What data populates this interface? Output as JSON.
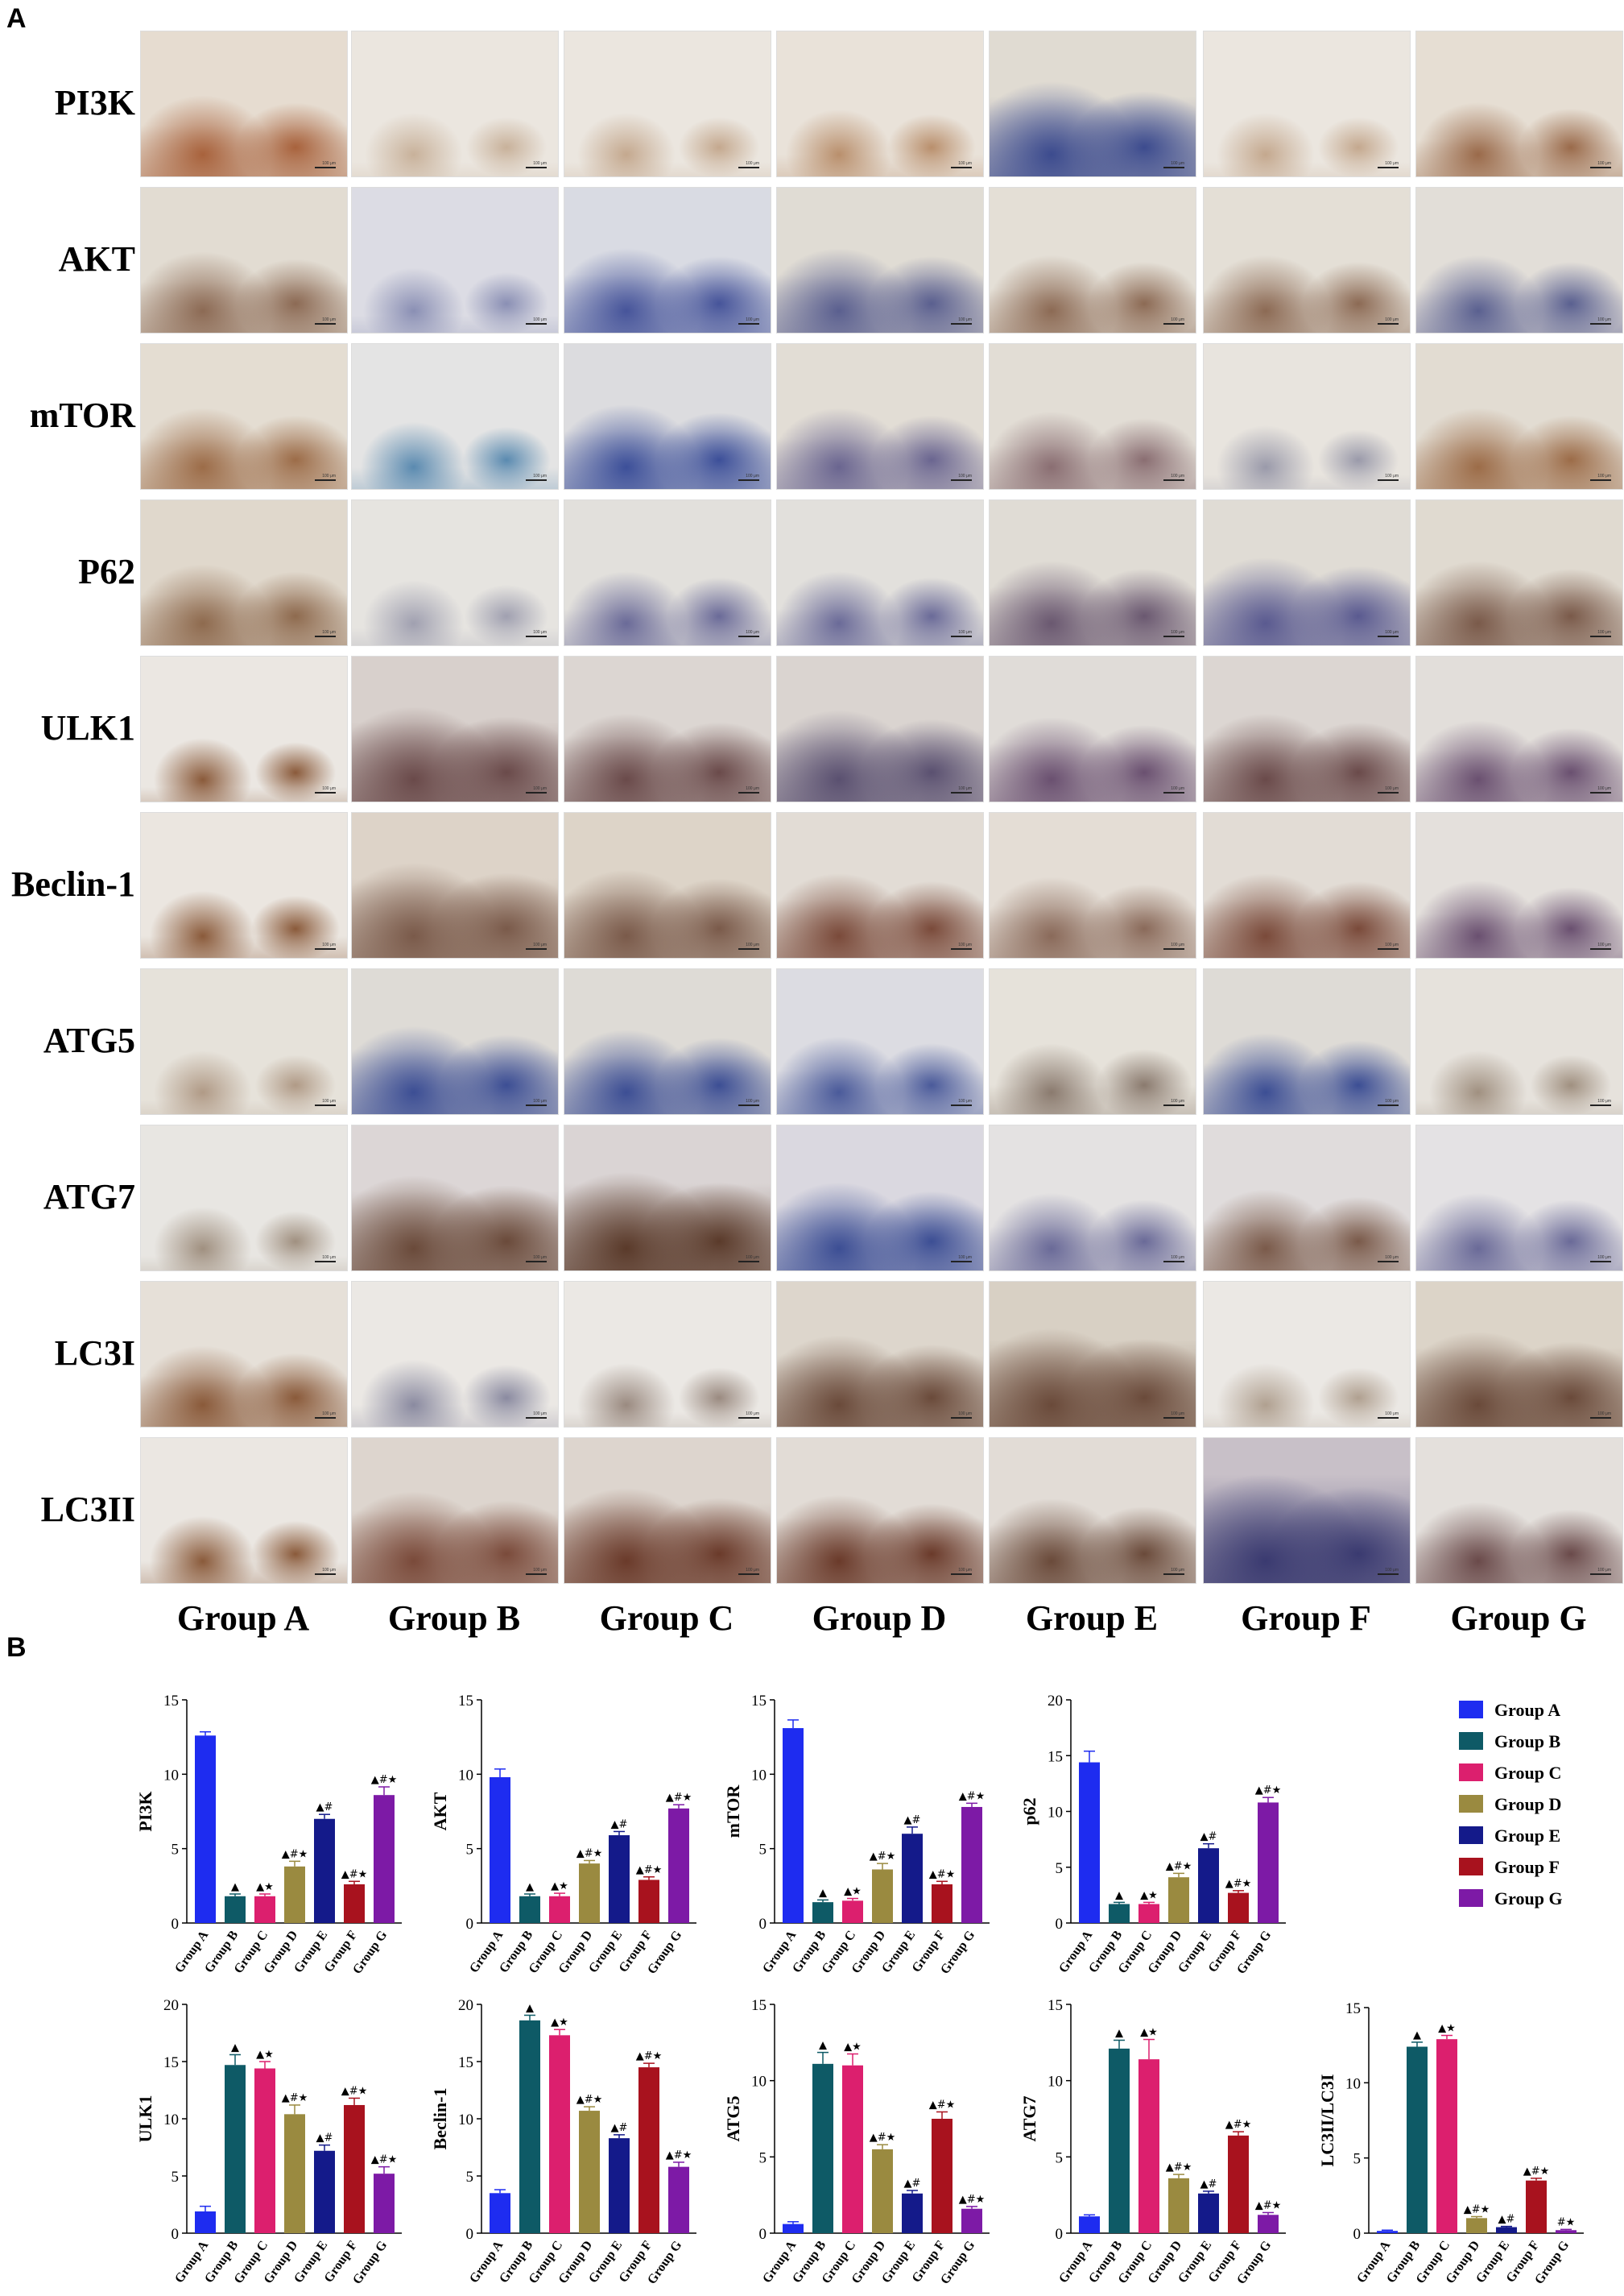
{
  "panels": {
    "a": "A",
    "b": "B"
  },
  "markers": [
    "PI3K",
    "AKT",
    "mTOR",
    "P62",
    "ULK1",
    "Beclin-1",
    "ATG5",
    "ATG7",
    "LC3I",
    "LC3II"
  ],
  "groups": [
    "Group A",
    "Group B",
    "Group C",
    "Group D",
    "Group E",
    "Group F",
    "Group G"
  ],
  "scale_bar_text": "100 μm",
  "tile_colors": {
    "PI3K": [
      [
        "#e6dcd0",
        "#a8623c",
        0.35
      ],
      [
        "#ebe6df",
        "#c8b19a",
        0.1
      ],
      [
        "#ebe6df",
        "#c4a88e",
        0.1
      ],
      [
        "#e9e2d9",
        "#b98f6c",
        0.15
      ],
      [
        "#e0dbd2",
        "#3c4b8e",
        0.55
      ],
      [
        "#ebe6df",
        "#c4a88e",
        0.1
      ],
      [
        "#e6ded3",
        "#9a6a4a",
        0.25
      ]
    ],
    "AKT": [
      [
        "#e2dcd2",
        "#8c6a54",
        0.35
      ],
      [
        "#dcdce4",
        "#8a8fb4",
        0.12
      ],
      [
        "#d9dbe3",
        "#46549a",
        0.4
      ],
      [
        "#e0dcd4",
        "#5a5f8f",
        0.4
      ],
      [
        "#e4dfd6",
        "#8c6a54",
        0.3
      ],
      [
        "#e4dfd6",
        "#8c6a54",
        0.3
      ],
      [
        "#e2ded8",
        "#5a6090",
        0.3
      ]
    ],
    "mTOR": [
      [
        "#e4ddd2",
        "#9c6c48",
        0.35
      ],
      [
        "#e4e4e4",
        "#5a8ab0",
        0.15
      ],
      [
        "#dcdcdf",
        "#3c4f99",
        0.4
      ],
      [
        "#e2ddd5",
        "#6a6590",
        0.35
      ],
      [
        "#e2ddd5",
        "#8a6e72",
        0.3
      ],
      [
        "#e8e4de",
        "#9a9aaa",
        0.1
      ],
      [
        "#e2dcd2",
        "#9c6c48",
        0.35
      ]
    ],
    "P62": [
      [
        "#e0d8cc",
        "#8e6a4e",
        0.35
      ],
      [
        "#e6e4e0",
        "#a0a0b0",
        0.12
      ],
      [
        "#e2e0dc",
        "#6a6a98",
        0.25
      ],
      [
        "#e2e0dc",
        "#6a6a98",
        0.25
      ],
      [
        "#e0dcd5",
        "#6a5870",
        0.4
      ],
      [
        "#e0dcd5",
        "#5a5a90",
        0.45
      ],
      [
        "#e0dad0",
        "#7a5a4a",
        0.4
      ]
    ],
    "ULK1": [
      [
        "#ebe7e2",
        "#8a5a3a",
        0.1
      ],
      [
        "#d8d0cc",
        "#6a4a4a",
        0.55
      ],
      [
        "#dcd6d2",
        "#6a4a4a",
        0.45
      ],
      [
        "#dad4d0",
        "#5a5070",
        0.5
      ],
      [
        "#e0dcd8",
        "#6a5070",
        0.4
      ],
      [
        "#dcd6d2",
        "#6a4a4a",
        0.45
      ],
      [
        "#e2deda",
        "#6a5070",
        0.35
      ]
    ],
    "Beclin-1": [
      [
        "#ebe6e0",
        "#8a5a3a",
        0.15
      ],
      [
        "#ddd3c8",
        "#7a5a4a",
        0.55
      ],
      [
        "#ddd4c8",
        "#7a5a4a",
        0.45
      ],
      [
        "#e2dcd5",
        "#7a4a3a",
        0.4
      ],
      [
        "#e4ddd5",
        "#8a6a5a",
        0.35
      ],
      [
        "#e2dcd5",
        "#7a4a3a",
        0.4
      ],
      [
        "#e4e0dc",
        "#6a5070",
        0.3
      ]
    ],
    "ATG5": [
      [
        "#e6e2da",
        "#b09a86",
        0.1
      ],
      [
        "#dedbd6",
        "#3c4e94",
        0.45
      ],
      [
        "#dedbd6",
        "#3c4e94",
        0.4
      ],
      [
        "#dcdce2",
        "#4a5a9a",
        0.3
      ],
      [
        "#e6e2da",
        "#8a7a6e",
        0.2
      ],
      [
        "#dedbd6",
        "#3c4e94",
        0.35
      ],
      [
        "#e6e2dc",
        "#a09080",
        0.1
      ]
    ],
    "ATG7": [
      [
        "#e8e6e2",
        "#a09080",
        0.1
      ],
      [
        "#dcd6d6",
        "#6a4a3a",
        0.55
      ],
      [
        "#dad4d4",
        "#5a3a2a",
        0.6
      ],
      [
        "#dad8e0",
        "#3c4e94",
        0.45
      ],
      [
        "#e4e2e2",
        "#6a6a98",
        0.3
      ],
      [
        "#e0dcdc",
        "#7a5a4a",
        0.35
      ],
      [
        "#e4e2e4",
        "#6a6a98",
        0.3
      ]
    ],
    "LC3I": [
      [
        "#e6e0d8",
        "#8a5a3a",
        0.35
      ],
      [
        "#ebe8e4",
        "#8a8aa0",
        0.15
      ],
      [
        "#ebe8e4",
        "#9a8a80",
        0.1
      ],
      [
        "#ddd6cc",
        "#6a4a3a",
        0.5
      ],
      [
        "#d8d0c4",
        "#6a4a3a",
        0.6
      ],
      [
        "#ebe8e4",
        "#b0a090",
        0.1
      ],
      [
        "#dcd4c8",
        "#6a4a3a",
        0.55
      ]
    ],
    "LC3II": [
      [
        "#ebe7e2",
        "#8a5a3a",
        0.15
      ],
      [
        "#ddd5ce",
        "#7a4a3a",
        0.5
      ],
      [
        "#ddd5ce",
        "#6a3a2a",
        0.55
      ],
      [
        "#e2dcd6",
        "#6a3a2a",
        0.45
      ],
      [
        "#e2dcd6",
        "#6a4a3a",
        0.4
      ],
      [
        "#c8c0c8",
        "#3a3a70",
        0.75
      ],
      [
        "#e4e0dc",
        "#6a4a4a",
        0.35
      ]
    ]
  },
  "chart_data": [
    {
      "type": "bar",
      "ylabel": "PI3K",
      "ylim": [
        0,
        15
      ],
      "yticks": [
        0,
        5,
        10,
        15
      ],
      "categories": [
        "Group A",
        "Group B",
        "Group C",
        "Group D",
        "Group E",
        "Group F",
        "Group G"
      ],
      "values": [
        12.6,
        1.8,
        1.8,
        3.8,
        7.0,
        2.6,
        8.6
      ],
      "errors": [
        0.25,
        0.15,
        0.15,
        0.35,
        0.3,
        0.2,
        0.55
      ],
      "annotations": [
        "",
        "▲",
        "▲★",
        "▲#★",
        "▲#",
        "▲#★",
        "▲#★"
      ]
    },
    {
      "type": "bar",
      "ylabel": "AKT",
      "ylim": [
        0,
        15
      ],
      "yticks": [
        0,
        5,
        10,
        15
      ],
      "categories": [
        "Group A",
        "Group B",
        "Group C",
        "Group D",
        "Group E",
        "Group F",
        "Group G"
      ],
      "values": [
        9.8,
        1.8,
        1.8,
        4.0,
        5.9,
        2.9,
        7.7
      ],
      "errors": [
        0.55,
        0.15,
        0.2,
        0.2,
        0.25,
        0.2,
        0.25
      ],
      "annotations": [
        "",
        "▲",
        "▲★",
        "▲#★",
        "▲#",
        "▲#★",
        "▲#★"
      ]
    },
    {
      "type": "bar",
      "ylabel": "mTOR",
      "ylim": [
        0,
        15
      ],
      "yticks": [
        0,
        5,
        10,
        15
      ],
      "categories": [
        "Group A",
        "Group B",
        "Group C",
        "Group D",
        "Group E",
        "Group F",
        "Group G"
      ],
      "values": [
        13.1,
        1.4,
        1.5,
        3.6,
        6.0,
        2.6,
        7.8
      ],
      "errors": [
        0.55,
        0.15,
        0.15,
        0.4,
        0.45,
        0.2,
        0.25
      ],
      "annotations": [
        "",
        "▲",
        "▲★",
        "▲#★",
        "▲#",
        "▲#★",
        "▲#★"
      ]
    },
    {
      "type": "bar",
      "ylabel": "p62",
      "ylim": [
        0,
        20
      ],
      "yticks": [
        0,
        5,
        10,
        15,
        20
      ],
      "categories": [
        "Group A",
        "Group B",
        "Group C",
        "Group D",
        "Group E",
        "Group F",
        "Group G"
      ],
      "values": [
        14.4,
        1.7,
        1.7,
        4.1,
        6.7,
        2.7,
        10.8
      ],
      "errors": [
        1.0,
        0.15,
        0.15,
        0.35,
        0.4,
        0.2,
        0.45
      ],
      "annotations": [
        "",
        "▲",
        "▲★",
        "▲#★",
        "▲#",
        "▲#★",
        "▲#★"
      ]
    },
    {
      "type": "bar",
      "ylabel": "ULK1",
      "ylim": [
        0,
        20
      ],
      "yticks": [
        0,
        5,
        10,
        15,
        20
      ],
      "categories": [
        "Group A",
        "Group B",
        "Group C",
        "Group D",
        "Group E",
        "Group F",
        "Group G"
      ],
      "values": [
        1.9,
        14.7,
        14.4,
        10.4,
        7.2,
        11.2,
        5.2
      ],
      "errors": [
        0.45,
        0.9,
        0.6,
        0.8,
        0.5,
        0.6,
        0.6
      ],
      "annotations": [
        "",
        "▲",
        "▲★",
        "▲#★",
        "▲#",
        "▲#★",
        "▲#★"
      ]
    },
    {
      "type": "bar",
      "ylabel": "Beclin-1",
      "ylim": [
        0,
        20
      ],
      "yticks": [
        0,
        5,
        10,
        15,
        20
      ],
      "categories": [
        "Group A",
        "Group B",
        "Group C",
        "Group D",
        "Group E",
        "Group F",
        "Group G"
      ],
      "values": [
        3.5,
        18.6,
        17.3,
        10.7,
        8.3,
        14.5,
        5.8
      ],
      "errors": [
        0.3,
        0.45,
        0.5,
        0.35,
        0.3,
        0.35,
        0.4
      ],
      "annotations": [
        "",
        "▲",
        "▲★",
        "▲#★",
        "▲#",
        "▲#★",
        "▲#★"
      ]
    },
    {
      "type": "bar",
      "ylabel": "ATG5",
      "ylim": [
        0,
        15
      ],
      "yticks": [
        0,
        5,
        10,
        15
      ],
      "categories": [
        "Group A",
        "Group B",
        "Group C",
        "Group D",
        "Group E",
        "Group F",
        "Group G"
      ],
      "values": [
        0.6,
        11.1,
        11.0,
        5.5,
        2.6,
        7.5,
        1.6
      ],
      "errors": [
        0.15,
        0.75,
        0.75,
        0.3,
        0.2,
        0.45,
        0.15
      ],
      "annotations": [
        "",
        "▲",
        "▲★",
        "▲#★",
        "▲#",
        "▲#★",
        "▲#★"
      ]
    },
    {
      "type": "bar",
      "ylabel": "ATG7",
      "ylim": [
        0,
        15
      ],
      "yticks": [
        0,
        5,
        10,
        15
      ],
      "categories": [
        "Group A",
        "Group B",
        "Group C",
        "Group D",
        "Group E",
        "Group F",
        "Group G"
      ],
      "values": [
        1.1,
        12.1,
        11.4,
        3.6,
        2.6,
        6.4,
        1.2
      ],
      "errors": [
        0.1,
        0.55,
        1.3,
        0.25,
        0.15,
        0.25,
        0.15
      ],
      "annotations": [
        "",
        "▲",
        "▲★",
        "▲#★",
        "▲#",
        "▲#★",
        "▲#★"
      ]
    },
    {
      "type": "bar",
      "ylabel": "LC3II/LC3I",
      "ylim": [
        0,
        15
      ],
      "yticks": [
        0,
        5,
        10,
        15
      ],
      "categories": [
        "Group A",
        "Group B",
        "Group C",
        "Group D",
        "Group E",
        "Group F",
        "Group G"
      ],
      "values": [
        0.15,
        12.4,
        12.9,
        1.0,
        0.4,
        3.5,
        0.2
      ],
      "errors": [
        0.05,
        0.3,
        0.25,
        0.1,
        0.05,
        0.15,
        0.05
      ],
      "annotations": [
        "",
        "▲",
        "▲★",
        "▲#★",
        "▲#",
        "▲#★",
        "#★"
      ]
    }
  ],
  "legend": {
    "items": [
      "Group A",
      "Group B",
      "Group C",
      "Group D",
      "Group E",
      "Group F",
      "Group G"
    ],
    "colors": [
      "#1e2cf0",
      "#0e5a66",
      "#dc1f6e",
      "#9a8a40",
      "#141a8a",
      "#a8121e",
      "#7d1aa6"
    ],
    "placement": "top-right"
  }
}
